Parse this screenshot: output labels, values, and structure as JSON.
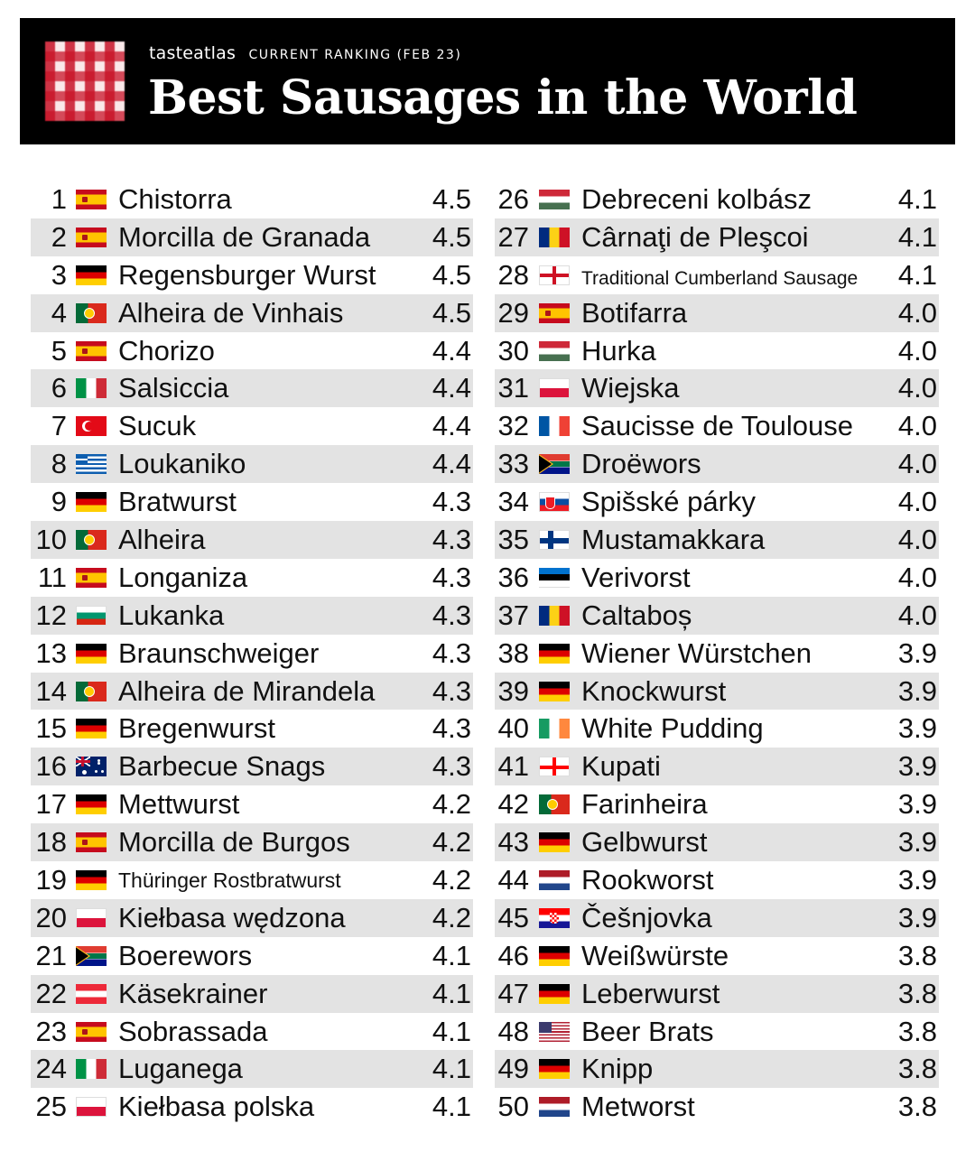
{
  "header": {
    "brand": "tasteatlas",
    "ranking_label": "CURRENT RANKING (FEB 23)",
    "title": "Best Sausages in the World"
  },
  "rankings": [
    {
      "rank": "1",
      "flag": "es",
      "name": "Chistorra",
      "score": "4.5"
    },
    {
      "rank": "2",
      "flag": "es",
      "name": "Morcilla de Granada",
      "score": "4.5"
    },
    {
      "rank": "3",
      "flag": "de",
      "name": "Regensburger Wurst",
      "score": "4.5"
    },
    {
      "rank": "4",
      "flag": "pt",
      "name": "Alheira de Vinhais",
      "score": "4.5"
    },
    {
      "rank": "5",
      "flag": "es",
      "name": "Chorizo",
      "score": "4.4"
    },
    {
      "rank": "6",
      "flag": "it",
      "name": "Salsiccia",
      "score": "4.4"
    },
    {
      "rank": "7",
      "flag": "tr",
      "name": "Sucuk",
      "score": "4.4"
    },
    {
      "rank": "8",
      "flag": "gr",
      "name": "Loukaniko",
      "score": "4.4"
    },
    {
      "rank": "9",
      "flag": "de",
      "name": "Bratwurst",
      "score": "4.3"
    },
    {
      "rank": "10",
      "flag": "pt",
      "name": "Alheira",
      "score": "4.3"
    },
    {
      "rank": "11",
      "flag": "es",
      "name": "Longaniza",
      "score": "4.3"
    },
    {
      "rank": "12",
      "flag": "bg",
      "name": "Lukanka",
      "score": "4.3"
    },
    {
      "rank": "13",
      "flag": "de",
      "name": "Braunschweiger",
      "score": "4.3"
    },
    {
      "rank": "14",
      "flag": "pt",
      "name": "Alheira de Mirandela",
      "score": "4.3"
    },
    {
      "rank": "15",
      "flag": "de",
      "name": "Bregenwurst",
      "score": "4.3"
    },
    {
      "rank": "16",
      "flag": "au",
      "name": "Barbecue Snags",
      "score": "4.3"
    },
    {
      "rank": "17",
      "flag": "de",
      "name": "Mettwurst",
      "score": "4.2"
    },
    {
      "rank": "18",
      "flag": "es",
      "name": "Morcilla de Burgos",
      "score": "4.2"
    },
    {
      "rank": "19",
      "flag": "de",
      "name": "Thüringer Rostbratwurst",
      "score": "4.2",
      "size": "small"
    },
    {
      "rank": "20",
      "flag": "pl",
      "name": "Kiełbasa wędzona",
      "score": "4.2"
    },
    {
      "rank": "21",
      "flag": "za",
      "name": "Boerewors",
      "score": "4.1"
    },
    {
      "rank": "22",
      "flag": "at",
      "name": "Käsekrainer",
      "score": "4.1"
    },
    {
      "rank": "23",
      "flag": "es",
      "name": "Sobrassada",
      "score": "4.1"
    },
    {
      "rank": "24",
      "flag": "it",
      "name": "Luganega",
      "score": "4.1"
    },
    {
      "rank": "25",
      "flag": "pl",
      "name": "Kiełbasa polska",
      "score": "4.1"
    },
    {
      "rank": "26",
      "flag": "hu",
      "name": "Debreceni kolbász",
      "score": "4.1"
    },
    {
      "rank": "27",
      "flag": "ro",
      "name": "Cârnaţi de Pleşcoi",
      "score": "4.1"
    },
    {
      "rank": "28",
      "flag": "en",
      "name": "Traditional Cumberland Sausage",
      "score": "4.1",
      "size": "small2"
    },
    {
      "rank": "29",
      "flag": "es",
      "name": "Botifarra",
      "score": "4.0"
    },
    {
      "rank": "30",
      "flag": "hu",
      "name": "Hurka",
      "score": "4.0"
    },
    {
      "rank": "31",
      "flag": "pl",
      "name": "Wiejska",
      "score": "4.0"
    },
    {
      "rank": "32",
      "flag": "fr",
      "name": "Saucisse de Toulouse",
      "score": "4.0"
    },
    {
      "rank": "33",
      "flag": "za",
      "name": "Droëwors",
      "score": "4.0"
    },
    {
      "rank": "34",
      "flag": "sk",
      "name": "Spišské párky",
      "score": "4.0"
    },
    {
      "rank": "35",
      "flag": "fi",
      "name": "Mustamakkara",
      "score": "4.0"
    },
    {
      "rank": "36",
      "flag": "ee",
      "name": "Verivorst",
      "score": "4.0"
    },
    {
      "rank": "37",
      "flag": "ro",
      "name": "Caltaboș",
      "score": "4.0"
    },
    {
      "rank": "38",
      "flag": "de",
      "name": "Wiener Würstchen",
      "score": "3.9"
    },
    {
      "rank": "39",
      "flag": "de",
      "name": "Knockwurst",
      "score": "3.9"
    },
    {
      "rank": "40",
      "flag": "ie",
      "name": "White Pudding",
      "score": "3.9"
    },
    {
      "rank": "41",
      "flag": "ge",
      "name": "Kupati",
      "score": "3.9"
    },
    {
      "rank": "42",
      "flag": "pt",
      "name": "Farinheira",
      "score": "3.9"
    },
    {
      "rank": "43",
      "flag": "de",
      "name": "Gelbwurst",
      "score": "3.9"
    },
    {
      "rank": "44",
      "flag": "nl",
      "name": "Rookworst",
      "score": "3.9"
    },
    {
      "rank": "45",
      "flag": "hr",
      "name": "Češnjovka",
      "score": "3.9"
    },
    {
      "rank": "46",
      "flag": "de",
      "name": "Weißwürste",
      "score": "3.8"
    },
    {
      "rank": "47",
      "flag": "de",
      "name": "Leberwurst",
      "score": "3.8"
    },
    {
      "rank": "48",
      "flag": "us",
      "name": "Beer Brats",
      "score": "3.8"
    },
    {
      "rank": "49",
      "flag": "de",
      "name": "Knipp",
      "score": "3.8"
    },
    {
      "rank": "50",
      "flag": "nl",
      "name": "Metworst",
      "score": "3.8"
    }
  ],
  "colors": {
    "header_bg": "#000000",
    "row_shade": "#e3e3e3",
    "text": "#111111"
  }
}
